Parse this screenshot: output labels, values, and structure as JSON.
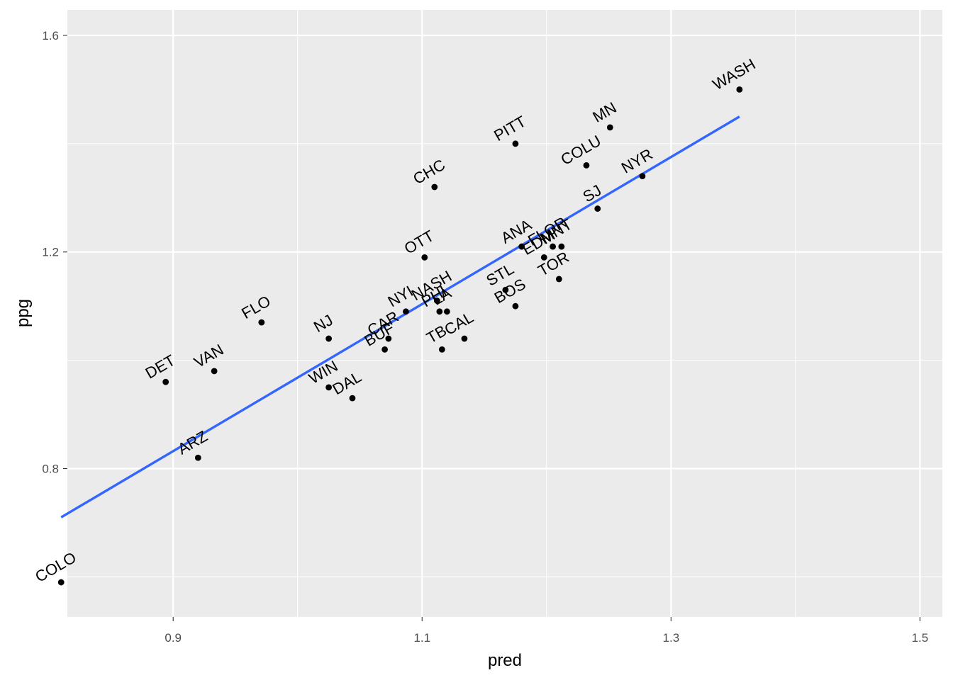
{
  "chart_data": {
    "type": "scatter",
    "title": "",
    "xlabel": "pred",
    "ylabel": "ppg",
    "xlim": [
      0.815,
      1.518
    ],
    "ylim": [
      0.526,
      1.647
    ],
    "x_ticks": [
      0.9,
      1.1,
      1.3,
      1.5
    ],
    "x_tick_labels": [
      "0.9",
      "1.1",
      "1.3",
      "1.5"
    ],
    "y_ticks": [
      0.8,
      1.2,
      1.6
    ],
    "y_tick_labels": [
      "0.8",
      "1.2",
      "1.6"
    ],
    "grid": true,
    "colors": {
      "panel": "#ebebeb",
      "grid": "#ffffff",
      "point": "#000000",
      "fit_line": "#3366ff"
    },
    "points": [
      {
        "label": "COLO",
        "x": 0.81,
        "y": 0.59
      },
      {
        "label": "DET",
        "x": 0.894,
        "y": 0.96
      },
      {
        "label": "ARZ",
        "x": 0.92,
        "y": 0.82
      },
      {
        "label": "VAN",
        "x": 0.933,
        "y": 0.98
      },
      {
        "label": "FLO",
        "x": 0.971,
        "y": 1.07
      },
      {
        "label": "WIN",
        "x": 1.025,
        "y": 0.95
      },
      {
        "label": "NJ",
        "x": 1.025,
        "y": 1.04
      },
      {
        "label": "DAL",
        "x": 1.044,
        "y": 0.93
      },
      {
        "label": "BUF",
        "x": 1.07,
        "y": 1.02
      },
      {
        "label": "CAR",
        "x": 1.073,
        "y": 1.04
      },
      {
        "label": "NYI",
        "x": 1.087,
        "y": 1.09
      },
      {
        "label": "OTT",
        "x": 1.102,
        "y": 1.19
      },
      {
        "label": "CHC",
        "x": 1.11,
        "y": 1.32
      },
      {
        "label": "NASH",
        "x": 1.112,
        "y": 1.11
      },
      {
        "label": "PHI",
        "x": 1.114,
        "y": 1.09
      },
      {
        "label": "LA",
        "x": 1.12,
        "y": 1.09
      },
      {
        "label": "TB",
        "x": 1.116,
        "y": 1.02
      },
      {
        "label": "CAL",
        "x": 1.134,
        "y": 1.04
      },
      {
        "label": "STL",
        "x": 1.167,
        "y": 1.13
      },
      {
        "label": "BOS",
        "x": 1.175,
        "y": 1.1
      },
      {
        "label": "PITT",
        "x": 1.175,
        "y": 1.4
      },
      {
        "label": "ANA",
        "x": 1.18,
        "y": 1.21
      },
      {
        "label": "EDM",
        "x": 1.198,
        "y": 1.19
      },
      {
        "label": "TOR",
        "x": 1.21,
        "y": 1.15
      },
      {
        "label": "FLOR",
        "x": 1.205,
        "y": 1.21
      },
      {
        "label": "MNT",
        "x": 1.212,
        "y": 1.21
      },
      {
        "label": "COLU",
        "x": 1.232,
        "y": 1.36
      },
      {
        "label": "SJ",
        "x": 1.241,
        "y": 1.28
      },
      {
        "label": "MN",
        "x": 1.251,
        "y": 1.43
      },
      {
        "label": "NYR",
        "x": 1.277,
        "y": 1.34
      },
      {
        "label": "WASH",
        "x": 1.355,
        "y": 1.5
      }
    ],
    "fit_line": {
      "x": [
        0.81,
        1.355
      ],
      "y": [
        0.71,
        1.45
      ]
    }
  }
}
